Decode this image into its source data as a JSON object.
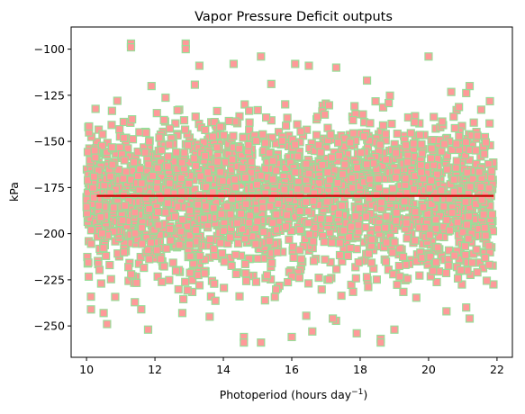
{
  "chart_data": {
    "type": "scatter",
    "title": "Vapor Pressure Deficit outputs",
    "xlabel": "Photoperiod (hours day",
    "xlabel_superscript": "−1",
    "xlabel_close": ")",
    "ylabel": "kPa",
    "xlim": [
      9.55,
      22.45
    ],
    "ylim": [
      -267,
      -88
    ],
    "x_ticks": [
      10,
      12,
      14,
      16,
      18,
      20,
      22
    ],
    "x_tick_labels": [
      "10",
      "12",
      "14",
      "16",
      "18",
      "20",
      "22"
    ],
    "y_ticks": [
      -100,
      -125,
      -150,
      -175,
      -200,
      -225,
      -250
    ],
    "y_tick_labels": [
      "−100",
      "−125",
      "−150",
      "−175",
      "−200",
      "−225",
      "−250"
    ],
    "grid": false,
    "series": [
      {
        "marker": "square",
        "color": "#ff9999",
        "edge_color": "#99dd99",
        "x_range": [
          10.0,
          21.9
        ],
        "y_center": -179.5,
        "y_dense_band": [
          -222,
          -133
        ],
        "y_extremes": [
          -259,
          -96
        ]
      },
      {
        "style": "line",
        "color": "#cc0000",
        "x": [
          10.3,
          21.9
        ],
        "y": [
          -179.5,
          -179.5
        ]
      }
    ],
    "outliers": [
      {
        "x": 11.3,
        "y": -97
      },
      {
        "x": 11.3,
        "y": -99
      },
      {
        "x": 12.9,
        "y": -97
      },
      {
        "x": 12.9,
        "y": -100
      },
      {
        "x": 15.1,
        "y": -104
      },
      {
        "x": 20.0,
        "y": -104
      },
      {
        "x": 14.3,
        "y": -108
      },
      {
        "x": 16.1,
        "y": -108
      },
      {
        "x": 16.5,
        "y": -109
      },
      {
        "x": 17.3,
        "y": -110
      },
      {
        "x": 13.3,
        "y": -109
      },
      {
        "x": 11.9,
        "y": -120
      },
      {
        "x": 10.9,
        "y": -128
      },
      {
        "x": 21.2,
        "y": -120
      },
      {
        "x": 18.2,
        "y": -117
      },
      {
        "x": 10.5,
        "y": -243
      },
      {
        "x": 10.6,
        "y": -249
      },
      {
        "x": 11.8,
        "y": -252
      },
      {
        "x": 11.6,
        "y": -241
      },
      {
        "x": 12.8,
        "y": -243
      },
      {
        "x": 14.6,
        "y": -256
      },
      {
        "x": 14.6,
        "y": -259
      },
      {
        "x": 15.1,
        "y": -259
      },
      {
        "x": 16.0,
        "y": -256
      },
      {
        "x": 16.6,
        "y": -253
      },
      {
        "x": 17.9,
        "y": -254
      },
      {
        "x": 18.6,
        "y": -257
      },
      {
        "x": 18.6,
        "y": -259
      },
      {
        "x": 19.0,
        "y": -252
      },
      {
        "x": 21.2,
        "y": -246
      },
      {
        "x": 21.1,
        "y": -240
      },
      {
        "x": 13.6,
        "y": -245
      },
      {
        "x": 17.2,
        "y": -246
      }
    ]
  }
}
